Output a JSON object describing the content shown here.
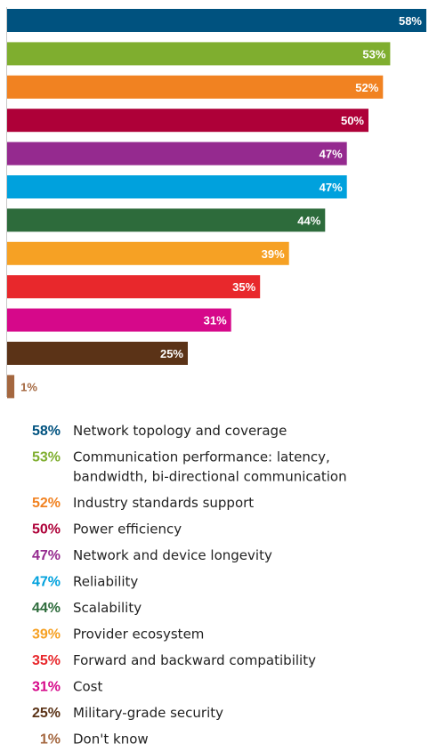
{
  "chart_data": {
    "type": "bar",
    "orientation": "horizontal",
    "xlim": [
      0,
      58
    ],
    "grid": false,
    "legend_placement": "bottom",
    "categories": [
      "Network topology and coverage",
      "Communication performance: latency, bandwidth, bi-directional communication",
      "Industry standards support",
      "Power efficiency",
      "Network and device longevity",
      "Reliability",
      "Scalability",
      "Provider ecosystem",
      "Forward and backward compatibility",
      "Cost",
      "Military-grade security",
      "Don't know"
    ],
    "values": [
      58,
      53,
      52,
      50,
      47,
      47,
      44,
      39,
      35,
      31,
      25,
      1
    ],
    "value_labels": [
      "58%",
      "53%",
      "52%",
      "50%",
      "47%",
      "47%",
      "44%",
      "39%",
      "35%",
      "31%",
      "25%",
      "1%"
    ],
    "legend_lines": [
      [
        "Network topology and coverage"
      ],
      [
        "Communication performance: latency,",
        "bandwidth, bi-directional communication"
      ],
      [
        "Industry standards support"
      ],
      [
        "Power efficiency"
      ],
      [
        "Network and device longevity"
      ],
      [
        "Reliability"
      ],
      [
        "Scalability"
      ],
      [
        "Provider ecosystem"
      ],
      [
        "Forward and backward compatibility"
      ],
      [
        "Cost"
      ],
      [
        "Military-grade security"
      ],
      [
        "Don't know"
      ]
    ],
    "colors": [
      "#00527f",
      "#7fae2f",
      "#f18221",
      "#ae0038",
      "#952a8f",
      "#00a1dd",
      "#2d6b3b",
      "#f6a124",
      "#e8282c",
      "#d6088a",
      "#5b3317",
      "#a4673f"
    ]
  }
}
